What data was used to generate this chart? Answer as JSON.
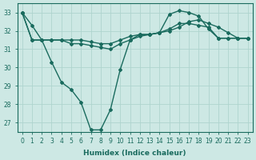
{
  "xlabel": "Humidex (Indice chaleur)",
  "ylabel": "",
  "background_color": "#cde8e4",
  "line_color": "#1a6b5e",
  "grid_color": "#aed4ce",
  "xlim": [
    -0.5,
    23.5
  ],
  "ylim": [
    26.5,
    33.5
  ],
  "yticks": [
    27,
    28,
    29,
    30,
    31,
    32,
    33
  ],
  "xticks": [
    0,
    1,
    2,
    3,
    4,
    5,
    6,
    7,
    8,
    9,
    10,
    11,
    12,
    13,
    14,
    15,
    16,
    17,
    18,
    19,
    20,
    21,
    22,
    23
  ],
  "lines": [
    [
      33.0,
      32.3,
      31.5,
      30.3,
      29.2,
      28.8,
      28.1,
      26.6,
      26.6,
      27.7,
      29.9,
      31.5,
      31.8,
      31.8,
      31.9,
      32.9,
      33.1,
      33.0,
      32.8,
      32.1,
      31.6,
      31.6,
      31.6,
      31.6
    ],
    [
      33.0,
      31.5,
      31.5,
      31.5,
      31.5,
      31.5,
      31.5,
      31.4,
      31.3,
      31.3,
      31.5,
      31.7,
      31.8,
      31.8,
      31.9,
      32.1,
      32.4,
      32.4,
      32.3,
      32.2,
      31.6,
      31.6,
      31.6,
      31.6
    ],
    [
      33.0,
      31.5,
      31.5,
      31.5,
      31.5,
      31.3,
      31.3,
      31.2,
      31.1,
      31.0,
      31.3,
      31.5,
      31.7,
      31.8,
      31.9,
      32.0,
      32.2,
      32.5,
      32.6,
      32.4,
      32.2,
      31.9,
      31.6,
      31.6
    ]
  ],
  "marker": "D",
  "markersize": 2.0,
  "linewidth": 1.0,
  "fontsize_ticks": 5.5,
  "fontsize_label": 6.5
}
